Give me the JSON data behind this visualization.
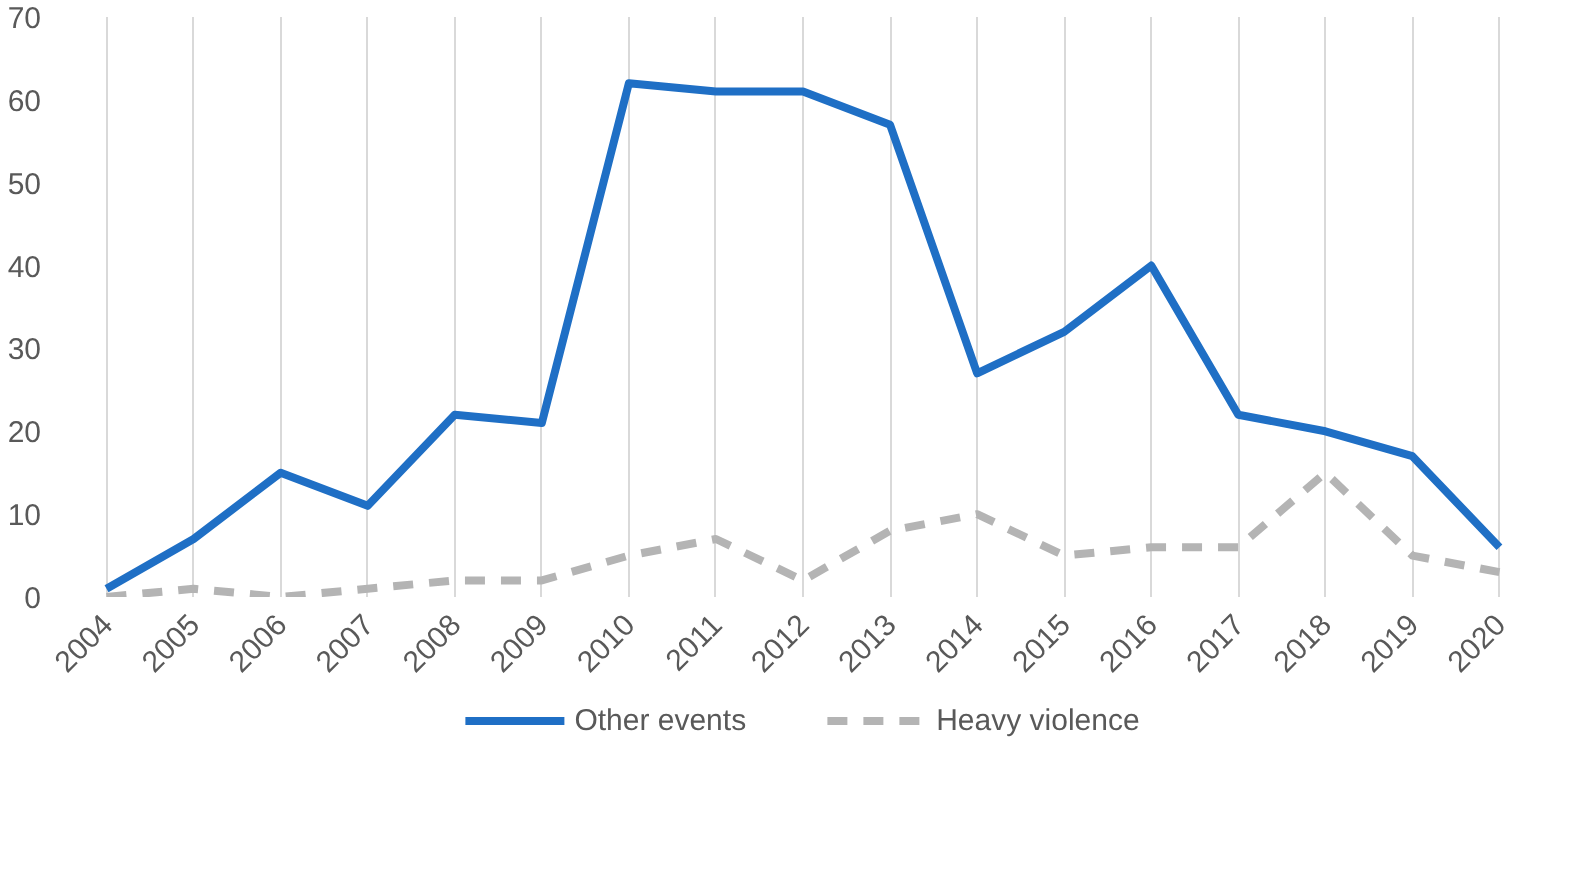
{
  "chart_data": {
    "type": "line",
    "categories": [
      "2004",
      "2005",
      "2006",
      "2007",
      "2008",
      "2009",
      "2010",
      "2011",
      "2012",
      "2013",
      "2014",
      "2015",
      "2016",
      "2017",
      "2018",
      "2019",
      "2020"
    ],
    "series": [
      {
        "name": "Other events",
        "color": "#1f6fc5",
        "line_style": "solid",
        "values": [
          1,
          7,
          15,
          11,
          22,
          21,
          62,
          61,
          61,
          57,
          27,
          32,
          40,
          22,
          20,
          17,
          6
        ]
      },
      {
        "name": "Heavy violence",
        "color": "#b4b4b4",
        "line_style": "dashed",
        "values": [
          0,
          1,
          0,
          1,
          2,
          2,
          5,
          7,
          2,
          8,
          10,
          5,
          6,
          6,
          15,
          5,
          3
        ]
      }
    ],
    "ylim": [
      0,
      70
    ],
    "yticks": [
      0,
      10,
      20,
      30,
      40,
      50,
      60,
      70
    ],
    "grid": "x",
    "legend": "bottom",
    "marker": "none"
  }
}
